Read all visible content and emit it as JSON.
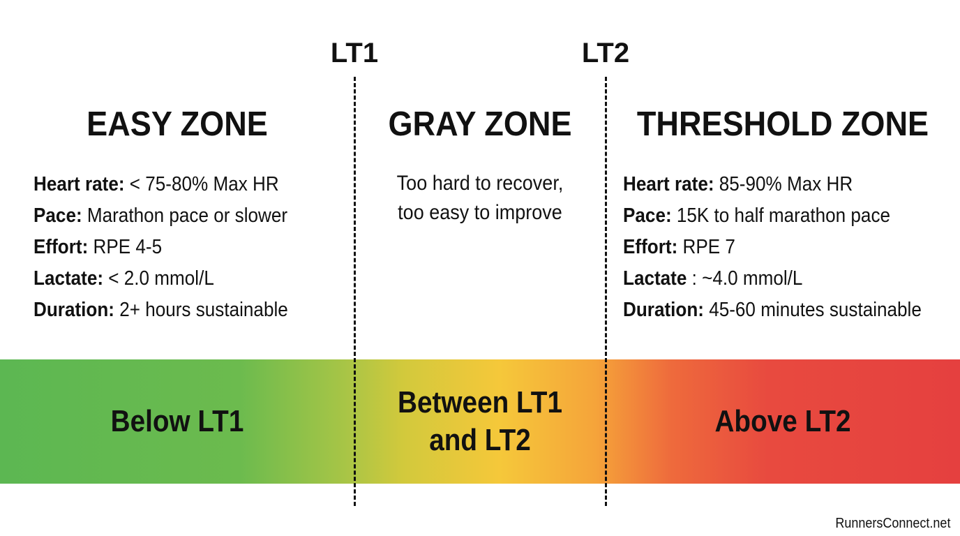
{
  "thresholds": [
    "LT1",
    "LT2"
  ],
  "zones": [
    {
      "title": "EASY ZONE",
      "details": [
        {
          "label": "Heart rate:",
          "value": "< 75-80% Max HR"
        },
        {
          "label": "Pace:",
          "value": "Marathon pace or slower"
        },
        {
          "label": "Effort:",
          "value": "RPE 4-5"
        },
        {
          "label": "Lactate:",
          "value": "< 2.0 mmol/L"
        },
        {
          "label": "Duration:",
          "value": "2+ hours sustainable"
        }
      ]
    },
    {
      "title": "GRAY ZONE",
      "description": [
        "Too hard to recover,",
        "too easy to improve"
      ]
    },
    {
      "title": "THRESHOLD ZONE",
      "details": [
        {
          "label": "Heart rate:",
          "value": "85-90% Max HR"
        },
        {
          "label": "Pace:",
          "value": "15K to half marathon pace"
        },
        {
          "label": "Effort:",
          "value": "RPE 7"
        },
        {
          "label": "Lactate",
          "value": ": ~4.0 mmol/L"
        },
        {
          "label": "Duration:",
          "value": "45-60 minutes sustainable"
        }
      ]
    }
  ],
  "band": [
    [
      "Below LT1"
    ],
    [
      "Between LT1",
      "and LT2"
    ],
    [
      "Above LT2"
    ]
  ],
  "footer": "RunnersConnect.net"
}
